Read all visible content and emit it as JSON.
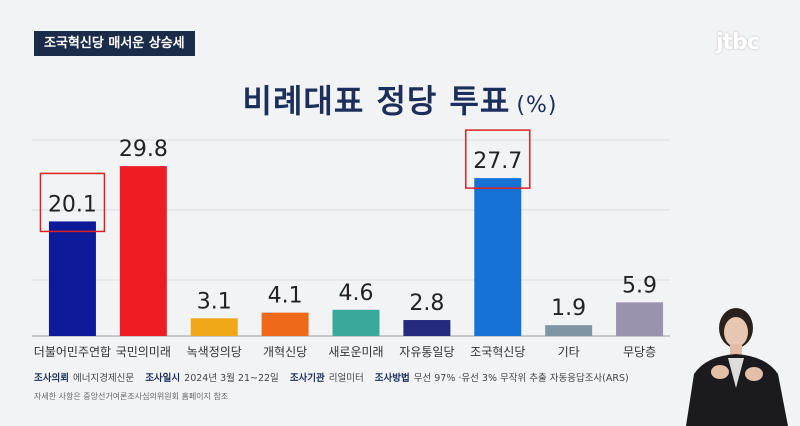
{
  "topic_tag": "조국혁신당 매서운 상승세",
  "logo": "jtbc",
  "chart_data": {
    "type": "bar",
    "title": "비례대표 정당 투표",
    "unit": "(%)",
    "categories": [
      "더불어민주연합",
      "국민의미래",
      "녹색정의당",
      "개혁신당",
      "새로운미래",
      "자유통일당",
      "조국혁신당",
      "기타",
      "무당층"
    ],
    "values": [
      20.1,
      29.8,
      3.1,
      4.1,
      4.6,
      2.8,
      27.7,
      1.9,
      5.9
    ],
    "value_labels": [
      "20.1",
      "29.8",
      "3.1",
      "4.1",
      "4.6",
      "2.8",
      "27.7",
      "1.9",
      "5.9"
    ],
    "colors": [
      "#0d1a9a",
      "#ee1c25",
      "#f0a818",
      "#ee6a1a",
      "#3aa99b",
      "#242a7c",
      "#1772d8",
      "#7e96a4",
      "#9a93ae"
    ],
    "highlighted": [
      "더불어민주연합",
      "조국혁신당"
    ],
    "highlight_color": "#e02020",
    "grid": true,
    "ylim": [
      0,
      30
    ]
  },
  "footer": {
    "items": [
      {
        "label": "조사의뢰",
        "value": "에너지경제신문"
      },
      {
        "label": "조사일시",
        "value": "2024년 3월 21~22일"
      },
      {
        "label": "조사기관",
        "value": "리얼미터"
      },
      {
        "label": "조사방법",
        "value": "무선 97% ·유선 3% 무작위 추출 자동응답조사(ARS)"
      }
    ],
    "note": "자세한 사항은 중앙선거여론조사심의위원회 홈페이지 참조"
  }
}
